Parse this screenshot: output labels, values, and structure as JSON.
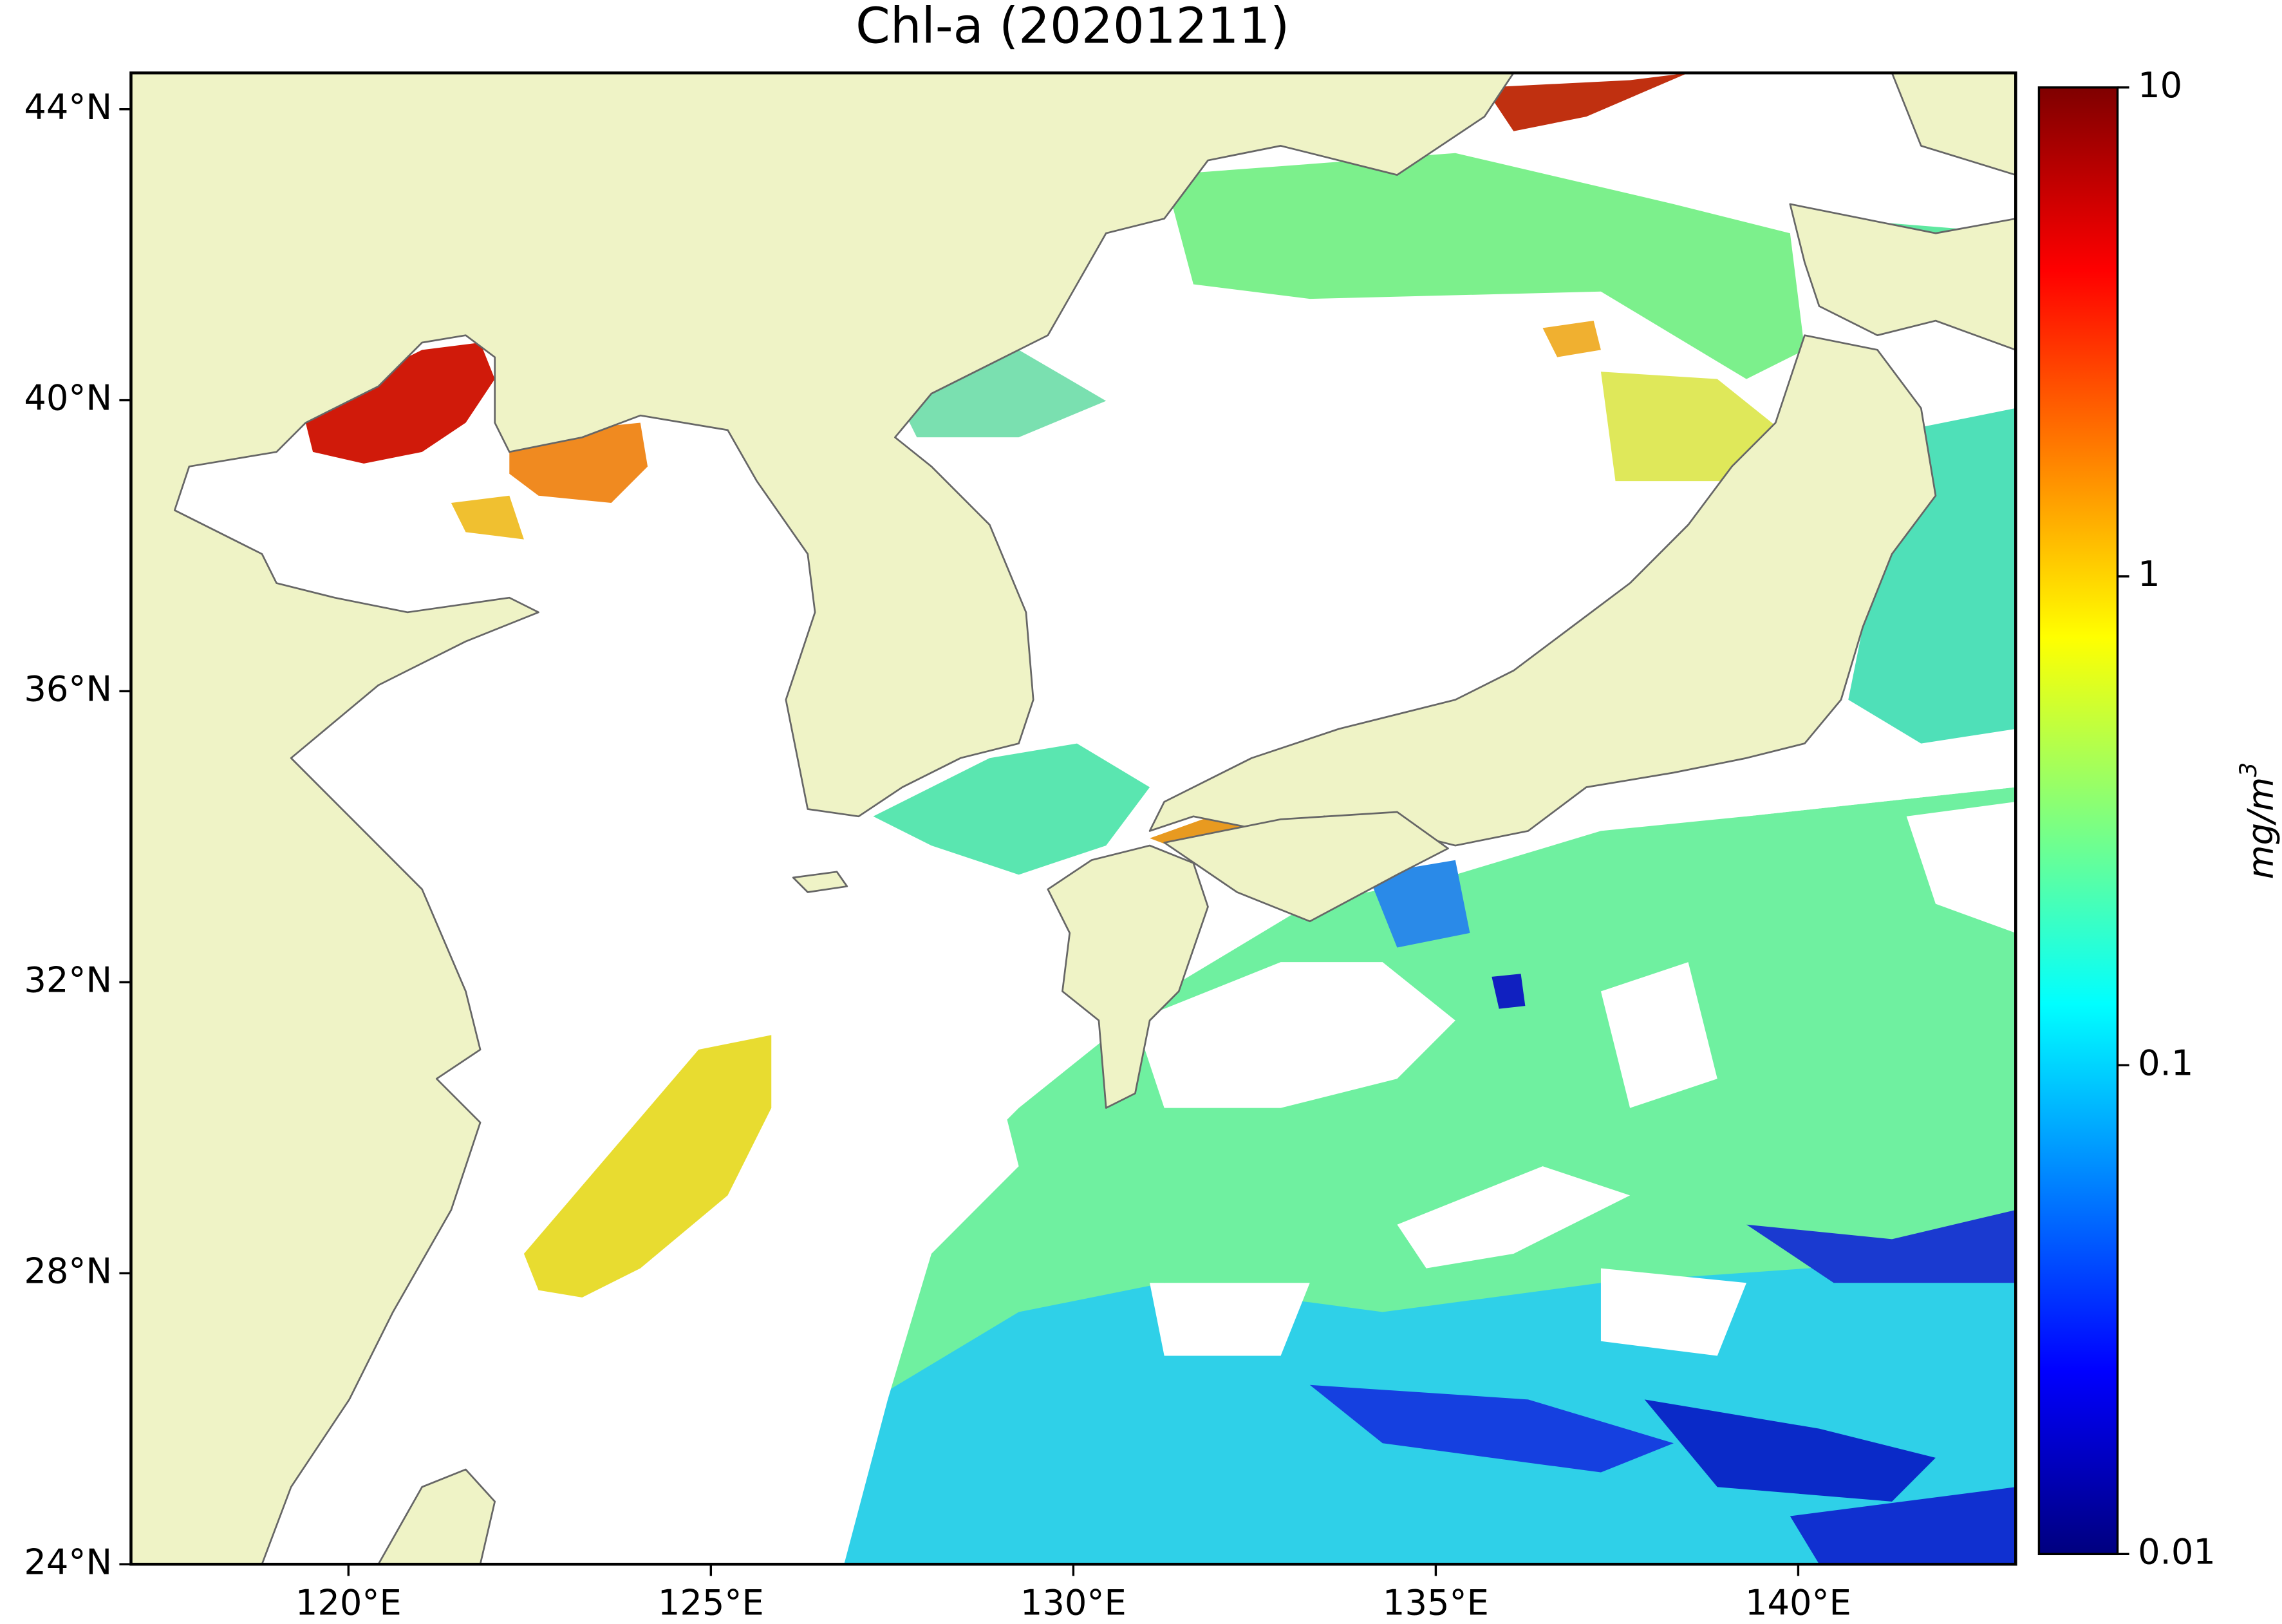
{
  "chart_data": {
    "type": "map",
    "title": "Chl-a (20201211)",
    "xlim": [
      117,
      143
    ],
    "ylim": [
      24,
      44.5
    ],
    "xticks": [
      {
        "value": 120,
        "label": "120°E"
      },
      {
        "value": 125,
        "label": "125°E"
      },
      {
        "value": 130,
        "label": "130°E"
      },
      {
        "value": 135,
        "label": "135°E"
      },
      {
        "value": 140,
        "label": "140°E"
      }
    ],
    "yticks": [
      {
        "value": 24,
        "label": "24°N"
      },
      {
        "value": 28,
        "label": "28°N"
      },
      {
        "value": 32,
        "label": "32°N"
      },
      {
        "value": 36,
        "label": "36°N"
      },
      {
        "value": 40,
        "label": "40°N"
      },
      {
        "value": 44,
        "label": "44°N"
      }
    ],
    "land_color": "#eff3c6",
    "coast_color": "#666666",
    "colorbar": {
      "scale": "log",
      "lim": [
        0.01,
        10
      ],
      "ticks": [
        {
          "value": 0.01,
          "label": "0.01"
        },
        {
          "value": 0.1,
          "label": "0.1"
        },
        {
          "value": 1,
          "label": "1"
        },
        {
          "value": 10,
          "label": "10"
        }
      ],
      "label": "mg/m",
      "label_sup": "3",
      "colors": [
        "#00007f",
        "#0000ff",
        "#007fff",
        "#00ffff",
        "#7fff7f",
        "#ffff00",
        "#ff7f00",
        "#ff0000",
        "#7f0000"
      ]
    }
  }
}
